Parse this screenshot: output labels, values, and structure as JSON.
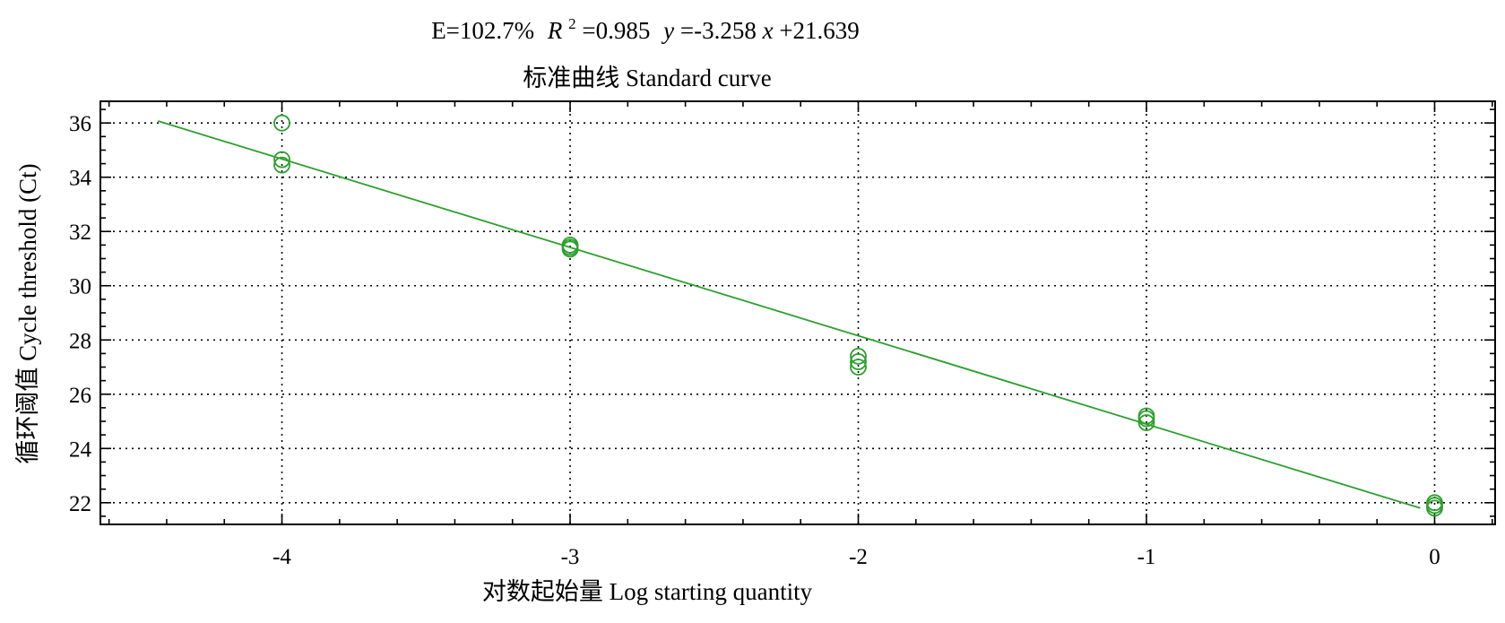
{
  "chart_data": {
    "type": "scatter",
    "equation_parts": {
      "efficiency": "E=102.7%",
      "r_symbol": "R",
      "r_exponent": "2",
      "r_value": "=0.985",
      "y_symbol": "y",
      "eq_mid": "=-3.258",
      "x_symbol": "x",
      "eq_end": "+21.639"
    },
    "subtitle": "标准曲线 Standard curve",
    "xlabel": "对数起始量 Log starting quantity",
    "ylabel": "循环阈值 Cycle threshold (Ct)",
    "xlim": [
      -4.63,
      0.21
    ],
    "ylim": [
      21.2,
      36.8
    ],
    "x_ticks": [
      -4,
      -3,
      -2,
      -1,
      0
    ],
    "x_tick_labels": [
      "-4",
      "-3",
      "-2",
      "-1",
      "0"
    ],
    "y_ticks": [
      22,
      24,
      26,
      28,
      30,
      32,
      34,
      36
    ],
    "y_tick_labels": [
      "22",
      "24",
      "26",
      "28",
      "30",
      "32",
      "34",
      "36"
    ],
    "grid": true,
    "color": "#2ca02c",
    "points": [
      {
        "x": -4,
        "y": 36.0
      },
      {
        "x": -4,
        "y": 34.65
      },
      {
        "x": -4,
        "y": 34.45
      },
      {
        "x": -3,
        "y": 31.5
      },
      {
        "x": -3,
        "y": 31.42
      },
      {
        "x": -3,
        "y": 31.35
      },
      {
        "x": -2,
        "y": 27.4
      },
      {
        "x": -2,
        "y": 27.2
      },
      {
        "x": -2,
        "y": 27.0
      },
      {
        "x": -1,
        "y": 25.2
      },
      {
        "x": -1,
        "y": 25.1
      },
      {
        "x": -1,
        "y": 24.95
      },
      {
        "x": 0,
        "y": 22.0
      },
      {
        "x": 0,
        "y": 21.9
      },
      {
        "x": 0,
        "y": 21.8
      }
    ],
    "fit_line": {
      "slope": -3.258,
      "intercept": 21.639,
      "x_start": -4.43,
      "x_end": -0.05
    }
  }
}
